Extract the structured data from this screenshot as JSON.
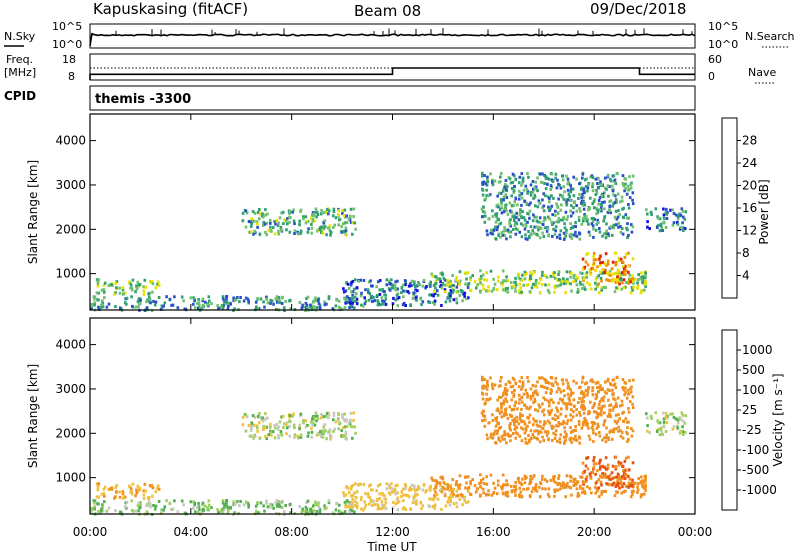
{
  "header": {
    "station": "Kapuskasing (fitACF)",
    "beam": "Beam 08",
    "date": "09/Dec/2018"
  },
  "noise_panel": {
    "left_label": "N.Sky",
    "right_label": "N.Search",
    "left_ticks": [
      "10^5",
      "10^0"
    ],
    "right_ticks": [
      "10^5",
      "10^0"
    ]
  },
  "freq_panel": {
    "left_label_1": "Freq.",
    "left_label_2": "[MHz]",
    "left_ticks": [
      "18",
      "8"
    ],
    "right_label": "Nave",
    "right_ticks": [
      "60",
      "0"
    ],
    "freq_steps": [
      {
        "t0": 0,
        "t1": 12,
        "mhz": 10.2
      },
      {
        "t0": 12,
        "t1": 21.8,
        "mhz": 12.6
      },
      {
        "t0": 21.8,
        "t1": 24,
        "mhz": 10.2
      }
    ],
    "nave_dotted_level": 12
  },
  "cpid": {
    "label": "CPID",
    "value": "themis -3300"
  },
  "power_panel": {
    "ylabel": "Slant Range [km]",
    "colorbar_label": "Power [dB]",
    "colorbar_ticks": [
      "28",
      "24",
      "20",
      "16",
      "12",
      "8",
      "4"
    ],
    "colors": [
      "#1010e0",
      "#2850c8",
      "#30a070",
      "#70c070",
      "#e8e000",
      "#f09000",
      "#e02000"
    ]
  },
  "velocity_panel": {
    "ylabel": "Slant Range [km]",
    "colorbar_label": "Velocity [m s⁻¹]",
    "colorbar_ticks": [
      "1000",
      "500",
      "100",
      "25",
      "-25",
      "-100",
      "-500",
      "-1000"
    ],
    "colors": [
      "#2030c0",
      "#3090a0",
      "#50b050",
      "#a0d060",
      "#c8c8c0",
      "#f0c040",
      "#f09020",
      "#e85010",
      "#e01010"
    ]
  },
  "y_ticks": [
    "4000",
    "3000",
    "2000",
    "1000"
  ],
  "x_axis": {
    "label": "Time UT",
    "ticks": [
      "00:00",
      "04:00",
      "08:00",
      "12:00",
      "16:00",
      "20:00",
      "00:00"
    ]
  },
  "chart_data": {
    "type": "heatmap",
    "x_range_hours": [
      0,
      24
    ],
    "y_range_km": [
      180,
      4600
    ],
    "echo_regions": [
      {
        "t0": 0.2,
        "t1": 2.7,
        "r0": 560,
        "r1": 900,
        "power_db": 16,
        "velocity": -100
      },
      {
        "t0": 0.0,
        "t1": 10.5,
        "r0": 200,
        "r1": 520,
        "power_db": 12,
        "velocity": 25
      },
      {
        "t0": 6.0,
        "t1": 10.5,
        "r0": 1900,
        "r1": 2500,
        "power_db": 14,
        "velocity": 0
      },
      {
        "t0": 10.0,
        "t1": 15.0,
        "r0": 300,
        "r1": 900,
        "power_db": 10,
        "velocity": -50
      },
      {
        "t0": 13.5,
        "t1": 22.0,
        "r0": 600,
        "r1": 1100,
        "power_db": 16,
        "velocity": -300
      },
      {
        "t0": 15.5,
        "t1": 21.5,
        "r0": 1800,
        "r1": 3300,
        "power_db": 12,
        "velocity": -250
      },
      {
        "t0": 19.5,
        "t1": 21.5,
        "r0": 800,
        "r1": 1500,
        "power_db": 24,
        "velocity": -600
      },
      {
        "t0": 22.0,
        "t1": 23.6,
        "r0": 2000,
        "r1": 2500,
        "power_db": 10,
        "velocity": 0
      }
    ]
  }
}
